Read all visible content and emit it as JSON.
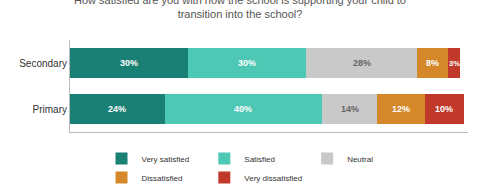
{
  "chart_data": {
    "type": "bar",
    "orientation": "horizontal",
    "stacked": true,
    "title": "How satisfied are you with how the school is supporting your child to\ntransition into the school?",
    "categories": [
      "Secondary",
      "Primary"
    ],
    "series": [
      {
        "name": "Very satisfied",
        "color": "#1a7f74",
        "values": [
          30,
          24
        ],
        "value_labels": [
          "30%",
          "24%"
        ]
      },
      {
        "name": "Satisfied",
        "color": "#4dc8b4",
        "values": [
          30,
          40
        ],
        "value_labels": [
          "30%",
          "40%"
        ]
      },
      {
        "name": "Neutral",
        "color": "#c9c9c9",
        "values": [
          28,
          14
        ],
        "value_labels": [
          "28%",
          "14%"
        ]
      },
      {
        "name": "Dissatisfied",
        "color": "#d4882a",
        "values": [
          8,
          12
        ],
        "value_labels": [
          "8%",
          "12%"
        ]
      },
      {
        "name": "Very dissatisfied",
        "color": "#c0392b",
        "values": [
          3,
          10
        ],
        "value_labels": [
          "3%",
          "10%"
        ]
      }
    ],
    "xlim": [
      0,
      101
    ],
    "data_labels": true,
    "tick_labels": "y",
    "grid": false,
    "legend": "bottom"
  }
}
